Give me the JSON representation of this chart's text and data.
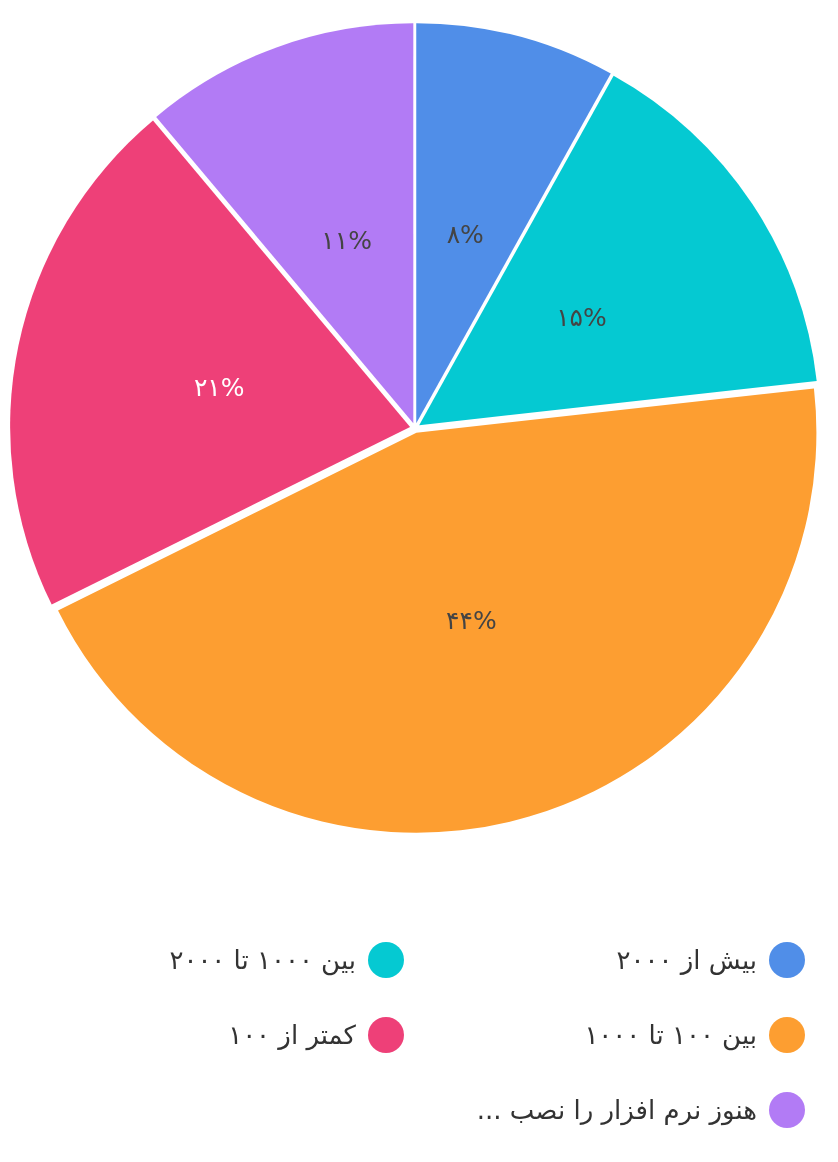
{
  "chart_data": {
    "type": "pie",
    "categories": [
      "بیش از ۲۰۰۰",
      "بین ۱۰۰۰ تا ۲۰۰۰",
      "بین ۱۰۰ تا ۱۰۰۰",
      "کمتر از ۱۰۰",
      "هنوز نرم افزار را نصب ..."
    ],
    "values": [
      8,
      15,
      44,
      21,
      11
    ],
    "colors": [
      "#508ee8",
      "#05c9d2",
      "#fd9e31",
      "#ee4078",
      "#b27bf5"
    ],
    "value_labels": [
      "۸%",
      "۱۵%",
      "۴۴%",
      "۲۱%",
      "۱۱%"
    ],
    "legend": "bottom"
  }
}
